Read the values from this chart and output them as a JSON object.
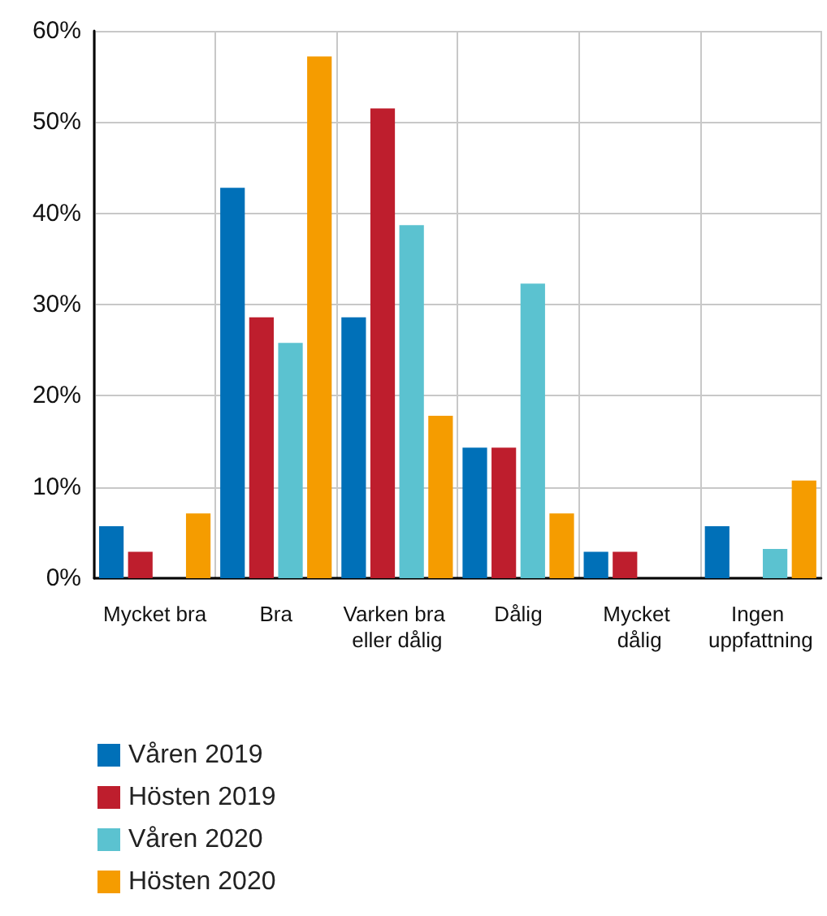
{
  "chart_data": {
    "type": "bar",
    "categories": [
      "Mycket bra",
      "Bra",
      "Varken bra eller dålig",
      "Dålig",
      "Mycket dålig",
      "Ingen uppfattning"
    ],
    "series": [
      {
        "name": "Våren 2019",
        "color": "#0070b8",
        "values": [
          5.7,
          42.8,
          28.6,
          14.3,
          2.9,
          5.7
        ]
      },
      {
        "name": "Hösten 2019",
        "color": "#be1e2d",
        "values": [
          2.9,
          28.6,
          51.5,
          14.3,
          2.9,
          0
        ]
      },
      {
        "name": "Våren 2020",
        "color": "#5bc2d0",
        "values": [
          0,
          25.8,
          38.7,
          32.3,
          0,
          3.2
        ]
      },
      {
        "name": "Hösten 2020",
        "color": "#f59c00",
        "values": [
          7.1,
          57.2,
          17.8,
          7.1,
          0,
          10.7
        ]
      }
    ],
    "ylim": [
      0,
      60
    ],
    "yticks": [
      {
        "value": 0,
        "label": "0%"
      },
      {
        "value": 10,
        "label": "10%"
      },
      {
        "value": 20,
        "label": "20%"
      },
      {
        "value": 30,
        "label": "30%"
      },
      {
        "value": 40,
        "label": "40%"
      },
      {
        "value": 50,
        "label": "50%"
      },
      {
        "value": 60,
        "label": "60%"
      }
    ],
    "grid": true,
    "legend": "bottom left"
  }
}
